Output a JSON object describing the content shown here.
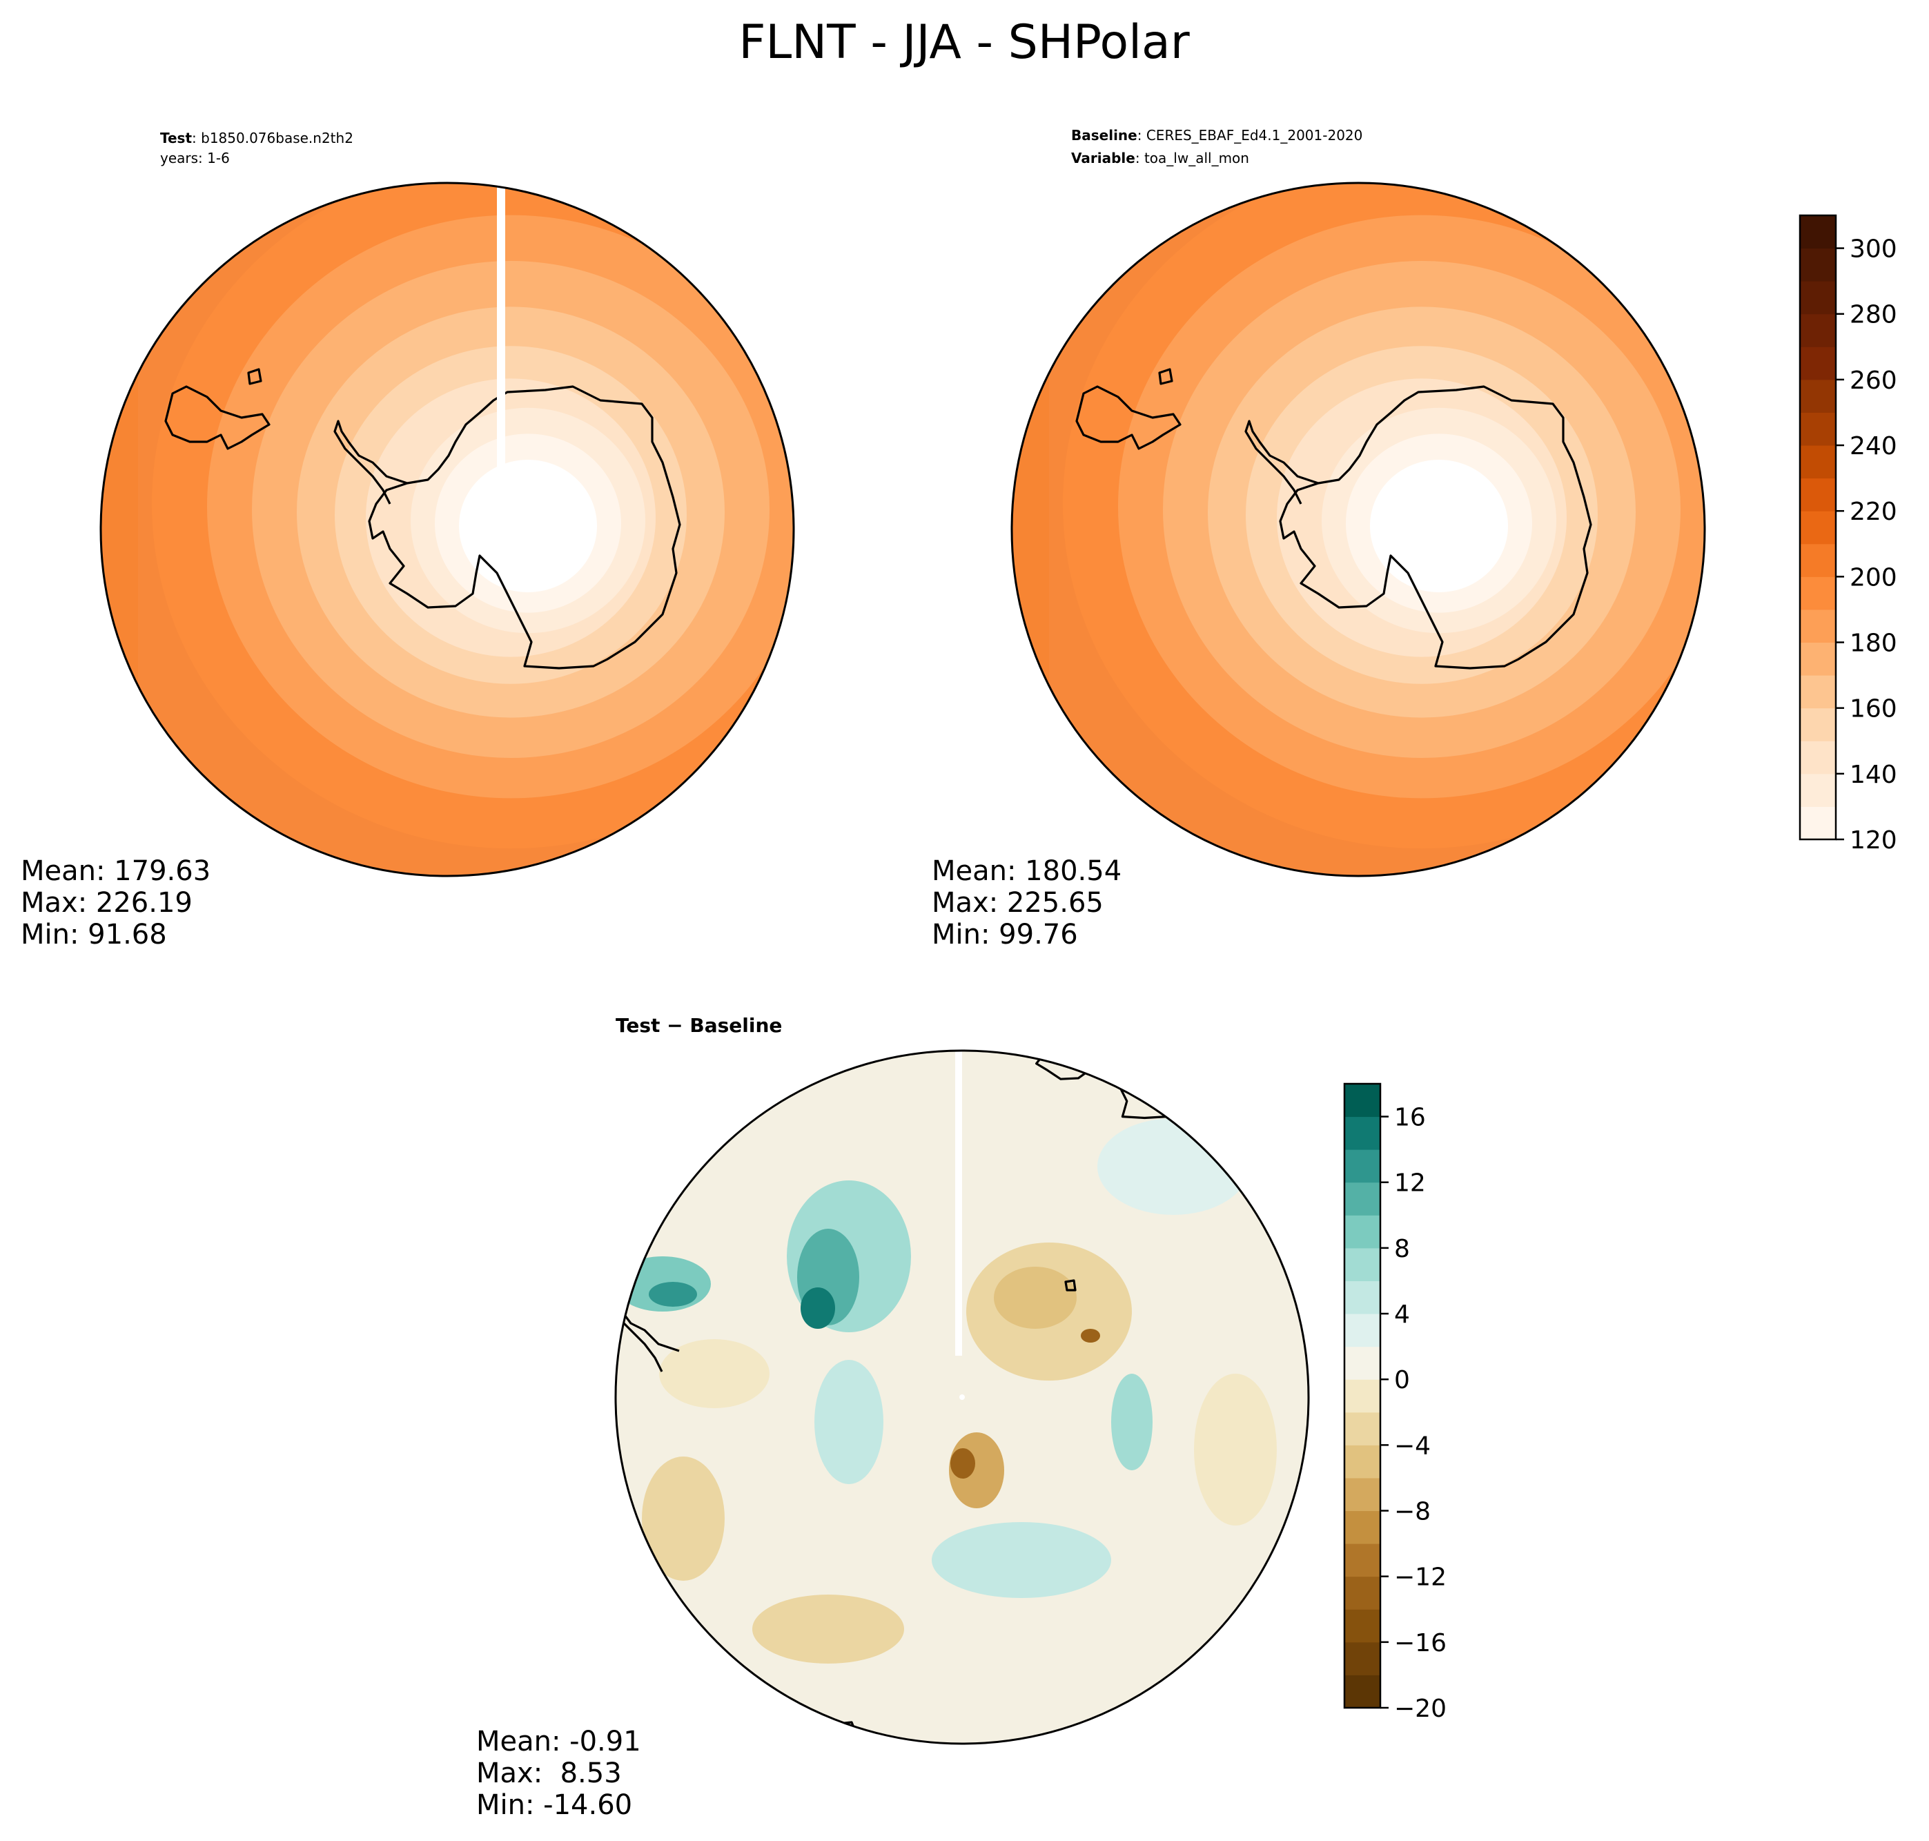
{
  "title": "FLNT - JJA - SHPolar",
  "chart_data": [
    {
      "type": "heatmap",
      "panel": "test",
      "projection": "south-polar-stereographic",
      "header": [
        {
          "label": "Test",
          "value": "b1850.076base.n2th2"
        },
        {
          "label": "",
          "value": "years: 1-6"
        }
      ],
      "stats": {
        "mean": "Mean: 179.63",
        "max": "Max: 226.19",
        "min": "Min: 91.68"
      },
      "mean": 179.63,
      "max": 226.19,
      "min": 91.68,
      "colormap": "Oranges",
      "colorbar_shared": true
    },
    {
      "type": "heatmap",
      "panel": "baseline",
      "projection": "south-polar-stereographic",
      "header": [
        {
          "label": "Baseline",
          "value": "CERES_EBAF_Ed4.1_2001-2020"
        },
        {
          "label": "Variable",
          "value": "toa_lw_all_mon"
        }
      ],
      "stats": {
        "mean": "Mean: 180.54",
        "max": "Max: 225.65",
        "min": "Min: 99.76"
      },
      "mean": 180.54,
      "max": 225.65,
      "min": 99.76,
      "colormap": "Oranges",
      "colorbar": {
        "range": [
          120,
          310
        ],
        "ticks": [
          "120",
          "140",
          "160",
          "180",
          "200",
          "220",
          "240",
          "260",
          "280",
          "300"
        ],
        "levels": 19,
        "colors": [
          "#fff5eb",
          "#feecd9",
          "#fee3c8",
          "#fdd6ae",
          "#fdc590",
          "#fdb272",
          "#fd9f56",
          "#fc8c3b",
          "#f57b27",
          "#ea6814",
          "#db590a",
          "#c24c03",
          "#a84003",
          "#933603",
          "#7f2704",
          "#6e2204",
          "#5e1d03",
          "#4f1903",
          "#401402"
        ]
      }
    },
    {
      "type": "heatmap",
      "panel": "difference",
      "projection": "south-polar-stereographic",
      "title": "Test − Baseline",
      "stats": {
        "mean": "Mean: -0.91",
        "max": "Max:  8.53",
        "min": "Min: -14.60"
      },
      "mean": -0.91,
      "max": 8.53,
      "min": -14.6,
      "colormap": "BrBG",
      "colorbar": {
        "range": [
          -20,
          18
        ],
        "ticks": [
          "−20",
          "−16",
          "−12",
          "−8",
          "−4",
          "0",
          "4",
          "8",
          "12",
          "16"
        ],
        "levels": 19,
        "colors": [
          "#5c3605",
          "#714309",
          "#86520d",
          "#9b6219",
          "#b07629",
          "#c4903f",
          "#d4a95e",
          "#e1c27f",
          "#ebd6a2",
          "#f3e8c6",
          "#f5f3e8",
          "#dff1ee",
          "#c3e8e3",
          "#a2dcd3",
          "#7ccbbf",
          "#54b1a6",
          "#2f968e",
          "#107a72",
          "#005e54"
        ]
      }
    }
  ]
}
